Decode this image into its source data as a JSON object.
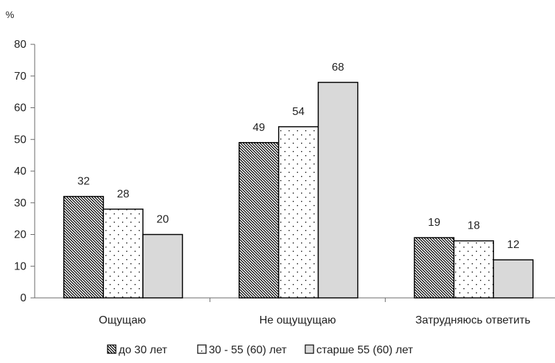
{
  "chart_data": {
    "type": "bar",
    "ylabel": "%",
    "ylim": [
      0,
      80
    ],
    "yticks": [
      0,
      10,
      20,
      30,
      40,
      50,
      60,
      70,
      80
    ],
    "grid": false,
    "legend_position": "bottom",
    "categories": [
      "Ощущаю",
      "Не ощущущаю",
      "Затрудняюсь ответить"
    ],
    "series": [
      {
        "name": "до 30 лет",
        "values": [
          32,
          49,
          19
        ],
        "fill": "hatch"
      },
      {
        "name": "30 - 55 (60) лет",
        "values": [
          28,
          54,
          18
        ],
        "fill": "dots"
      },
      {
        "name": "старше 55 (60) лет",
        "values": [
          20,
          68,
          12
        ],
        "fill": "#d9d9d9"
      }
    ]
  }
}
